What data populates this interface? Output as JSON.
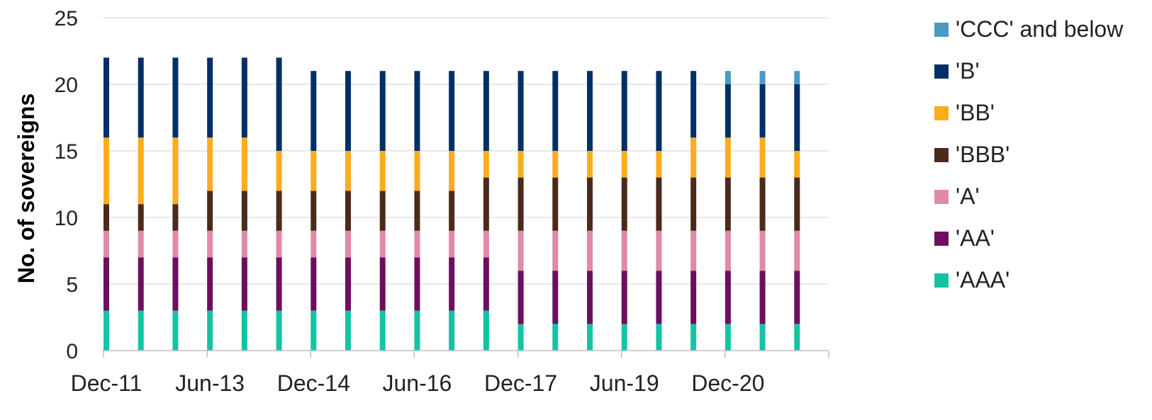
{
  "chart_data": {
    "type": "bar",
    "stacked": true,
    "ylabel": "No. of sovereigns",
    "xlabel": "",
    "ylim": [
      0,
      25
    ],
    "yticks": [
      0,
      5,
      10,
      15,
      20,
      25
    ],
    "grid": true,
    "legend_position": "right",
    "x_tick_labels": [
      "Dec-11",
      "Jun-13",
      "Dec-14",
      "Jun-16",
      "Dec-17",
      "Jun-19",
      "Dec-20"
    ],
    "categories": [
      "Dec-11",
      "Jun-12",
      "Dec-12",
      "Jun-13",
      "Dec-13",
      "Jun-14",
      "Dec-14",
      "Jun-15",
      "Dec-15",
      "Jun-16",
      "Dec-16",
      "Jun-17",
      "Dec-17",
      "Jun-18",
      "Dec-18",
      "Jun-19",
      "Dec-19",
      "Jun-20",
      "Dec-20",
      "Jun-21",
      "Dec-21"
    ],
    "series": [
      {
        "name": "'AAA'",
        "color": "#13c4a3",
        "values": [
          3,
          3,
          3,
          3,
          3,
          3,
          3,
          3,
          3,
          3,
          3,
          3,
          2,
          2,
          2,
          2,
          2,
          2,
          2,
          2,
          2
        ]
      },
      {
        "name": "'AA'",
        "color": "#6d0e5f",
        "values": [
          4,
          4,
          4,
          4,
          4,
          4,
          4,
          4,
          4,
          4,
          4,
          4,
          4,
          4,
          4,
          4,
          4,
          4,
          4,
          4,
          4
        ]
      },
      {
        "name": "'A'",
        "color": "#e08aa6",
        "values": [
          2,
          2,
          2,
          2,
          2,
          2,
          2,
          2,
          2,
          2,
          2,
          2,
          3,
          3,
          3,
          3,
          3,
          3,
          3,
          3,
          3
        ]
      },
      {
        "name": "'BBB'",
        "color": "#4a2a1b",
        "values": [
          2,
          2,
          2,
          3,
          3,
          3,
          3,
          3,
          3,
          3,
          3,
          4,
          4,
          4,
          4,
          4,
          4,
          4,
          4,
          4,
          4
        ]
      },
      {
        "name": "'BB'",
        "color": "#fdac1e",
        "values": [
          5,
          5,
          5,
          4,
          4,
          3,
          3,
          3,
          3,
          3,
          3,
          2,
          2,
          2,
          2,
          2,
          2,
          3,
          3,
          3,
          2
        ]
      },
      {
        "name": "'B'",
        "color": "#012f66",
        "values": [
          6,
          6,
          6,
          6,
          6,
          7,
          6,
          6,
          6,
          6,
          6,
          6,
          6,
          6,
          6,
          6,
          6,
          5,
          4,
          4,
          5
        ]
      },
      {
        "name": "'CCC' and below",
        "color": "#4b99c4",
        "values": [
          0,
          0,
          0,
          0,
          0,
          0,
          0,
          0,
          0,
          0,
          0,
          0,
          0,
          0,
          0,
          0,
          0,
          0,
          1,
          1,
          1
        ]
      }
    ]
  },
  "legend": {
    "items": [
      {
        "label": "'CCC' and below",
        "color": "#4b99c4"
      },
      {
        "label": "'B'",
        "color": "#012f66"
      },
      {
        "label": "'BB'",
        "color": "#fdac1e"
      },
      {
        "label": "'BBB'",
        "color": "#4a2a1b"
      },
      {
        "label": "'A'",
        "color": "#e08aa6"
      },
      {
        "label": "'AA'",
        "color": "#6d0e5f"
      },
      {
        "label": "'AAA'",
        "color": "#13c4a3"
      }
    ]
  }
}
